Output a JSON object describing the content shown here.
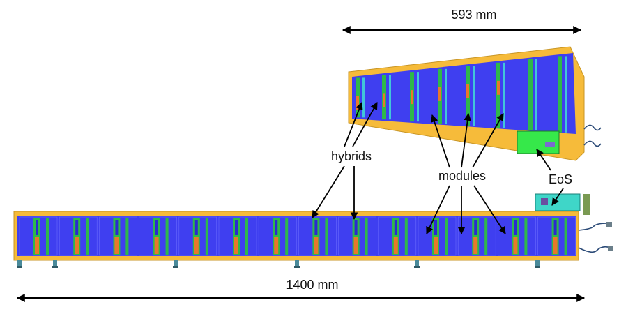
{
  "labels": {
    "top_dimension": "593 mm",
    "bottom_dimension": "1400 mm",
    "hybrids": "hybrids",
    "modules": "modules",
    "eos": "EoS"
  },
  "colors": {
    "sensor": "#3f3ff0",
    "frame": "#f6bb3a",
    "hybrid_green": "#2fb84a",
    "readout_orange": "#e8782a",
    "eos_board": "#36e84a",
    "cable": "#2b4a77",
    "arrow": "#000000"
  }
}
